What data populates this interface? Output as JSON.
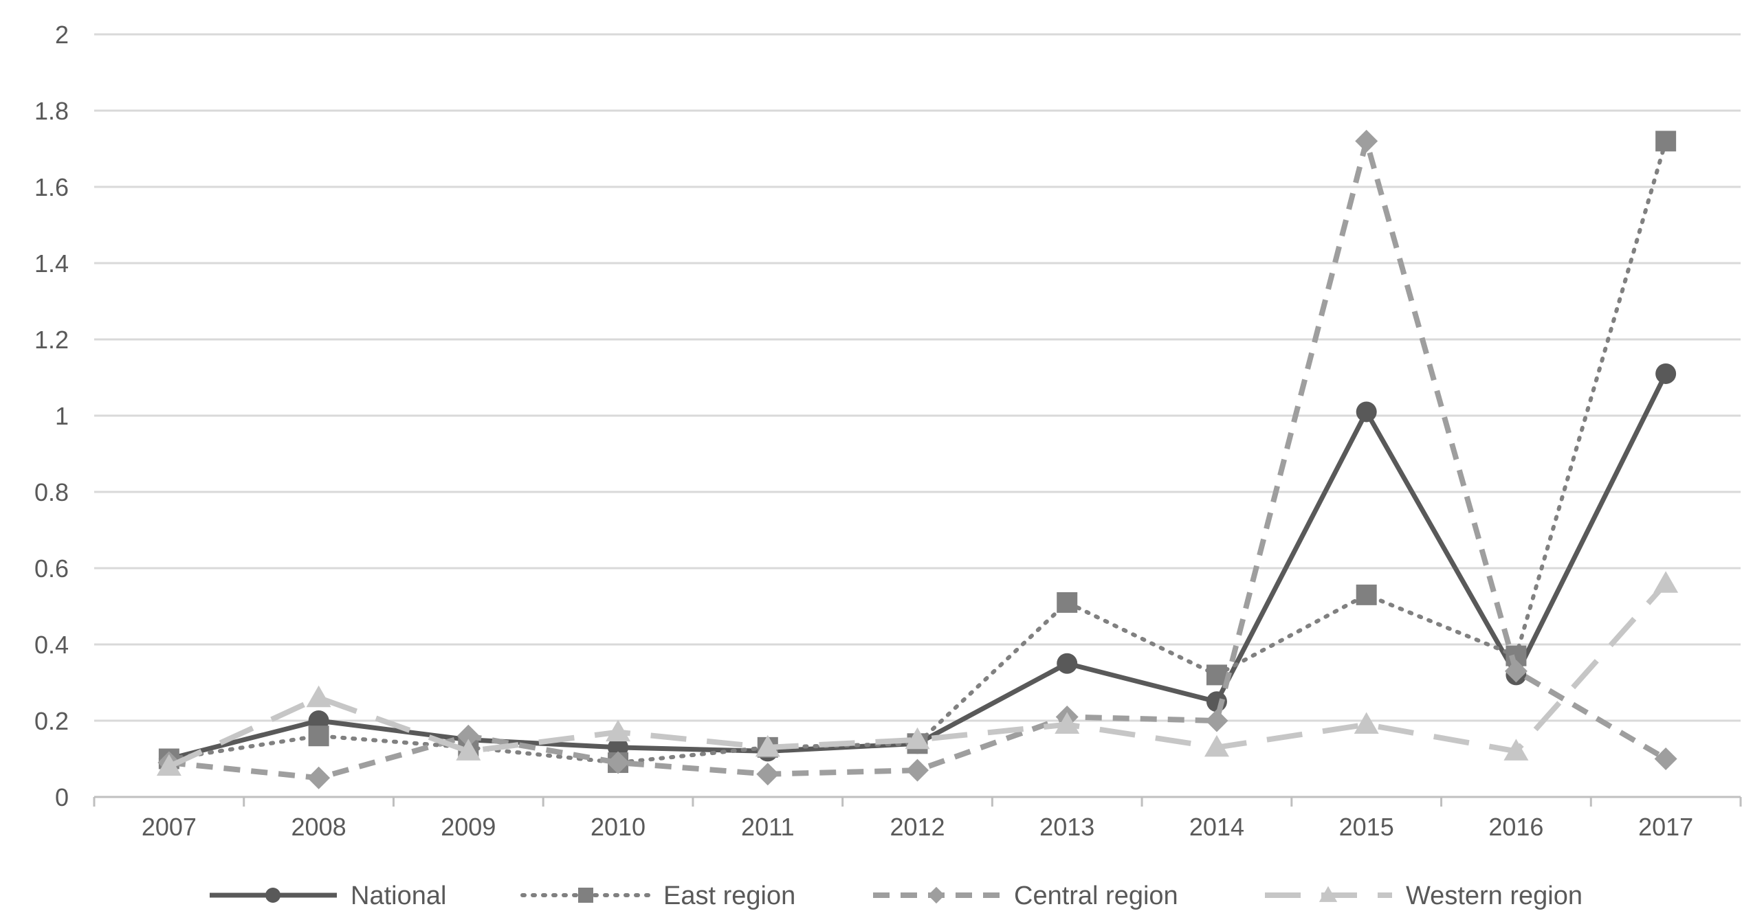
{
  "chart_data": {
    "type": "line",
    "title": "",
    "xlabel": "",
    "ylabel": "",
    "categories": [
      "2007",
      "2008",
      "2009",
      "2010",
      "2011",
      "2012",
      "2013",
      "2014",
      "2015",
      "2016",
      "2017"
    ],
    "ylim": [
      0,
      2
    ],
    "yticks": [
      "0",
      "0.2",
      "0.4",
      "0.6",
      "0.8",
      "1",
      "1.2",
      "1.4",
      "1.6",
      "1.8",
      "2"
    ],
    "grid": true,
    "legend_position": "bottom",
    "series": [
      {
        "name": "National",
        "values": [
          0.1,
          0.2,
          0.15,
          0.13,
          0.12,
          0.14,
          0.35,
          0.25,
          1.01,
          0.32,
          1.11
        ],
        "color": "#595959",
        "line_style": "solid",
        "marker": "circle"
      },
      {
        "name": "East region",
        "values": [
          0.1,
          0.16,
          0.13,
          0.09,
          0.13,
          0.14,
          0.51,
          0.32,
          0.53,
          0.37,
          1.72
        ],
        "color": "#808080",
        "line_style": "dotted",
        "marker": "square"
      },
      {
        "name": "Central region",
        "values": [
          0.09,
          0.05,
          0.16,
          0.09,
          0.06,
          0.07,
          0.21,
          0.2,
          1.72,
          0.33,
          0.1
        ],
        "color": "#9e9e9e",
        "line_style": "dashed",
        "marker": "diamond"
      },
      {
        "name": "Western region",
        "values": [
          0.08,
          0.26,
          0.12,
          0.17,
          0.13,
          0.15,
          0.19,
          0.13,
          0.19,
          0.12,
          0.56
        ],
        "color": "#c6c6c6",
        "line_style": "longdash",
        "marker": "triangle"
      }
    ]
  }
}
